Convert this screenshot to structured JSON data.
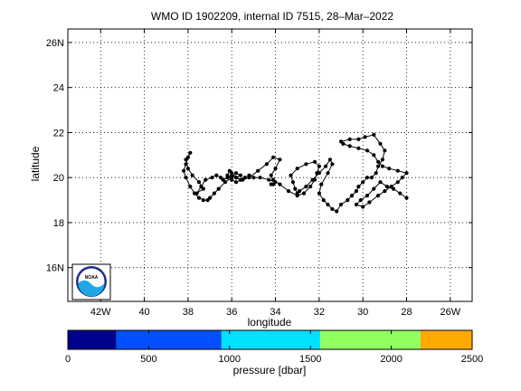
{
  "chart_data": {
    "type": "scatter",
    "title": "WMO ID 1902209, internal ID 7515, 28–Mar–2022",
    "xlabel": "longitude",
    "ylabel": "latitude",
    "xlim": [
      -43.5,
      -25.0
    ],
    "ylim": [
      14.5,
      26.6
    ],
    "grid": true,
    "x_ticks": [
      {
        "value": -42,
        "label": "42W"
      },
      {
        "value": -40,
        "label": "40"
      },
      {
        "value": -38,
        "label": "38"
      },
      {
        "value": -36,
        "label": "36"
      },
      {
        "value": -34,
        "label": "34"
      },
      {
        "value": -32,
        "label": "32"
      },
      {
        "value": -30,
        "label": "30"
      },
      {
        "value": -28,
        "label": "28"
      },
      {
        "value": -26,
        "label": "26W"
      }
    ],
    "y_ticks": [
      {
        "value": 16,
        "label": "16N"
      },
      {
        "value": 18,
        "label": "18"
      },
      {
        "value": 20,
        "label": "20"
      },
      {
        "value": 22,
        "label": "22"
      },
      {
        "value": 24,
        "label": "24"
      },
      {
        "value": 26,
        "label": "26N"
      }
    ],
    "series": [
      {
        "marker": "dot",
        "color": "#000000",
        "x": [
          -28.0,
          -28.3,
          -28.6,
          -28.9,
          -29.2,
          -29.5,
          -29.8,
          -30.1,
          -30.3,
          -30.0,
          -29.7,
          -29.3,
          -29.0,
          -28.7,
          -28.4,
          -28.2,
          -28.0,
          -28.4,
          -28.8,
          -29.1,
          -29.3,
          -29.5,
          -29.8,
          -30.2,
          -30.6,
          -30.9,
          -31.0,
          -30.6,
          -30.2,
          -29.9,
          -29.5,
          -29.2,
          -29.0,
          -29.1,
          -29.3,
          -29.4,
          -29.6,
          -29.8,
          -30.0,
          -30.2,
          -30.3,
          -30.5,
          -30.7,
          -31.0,
          -31.2,
          -31.4,
          -31.6,
          -31.8,
          -32.0,
          -31.9,
          -31.6,
          -31.4,
          -31.5,
          -31.7,
          -32.0,
          -32.3,
          -32.6,
          -32.9,
          -33.0,
          -33.1,
          -33.2,
          -33.3,
          -33.0,
          -32.6,
          -32.2,
          -32.0,
          -32.1,
          -32.2,
          -32.4,
          -32.7,
          -33.0,
          -33.4,
          -33.8,
          -34.1,
          -34.2,
          -34.0,
          -33.8,
          -34.1,
          -34.4,
          -34.8,
          -35.2,
          -35.5,
          -35.8,
          -36.0,
          -36.2,
          -36.1,
          -36.0,
          -35.8,
          -35.6,
          -35.8,
          -36.0,
          -36.3,
          -36.6,
          -36.8,
          -37.0,
          -37.1,
          -37.3,
          -37.5,
          -37.7,
          -37.9,
          -38.1,
          -38.2,
          -38.1,
          -38.0,
          -37.9,
          -38.1,
          -38.0,
          -37.8,
          -37.5,
          -37.3,
          -37.6,
          -37.4,
          -37.2,
          -36.9,
          -36.7,
          -36.5,
          -36.4,
          -36.2,
          -36.0,
          -35.8,
          -35.6,
          -35.4,
          -35.2,
          -35.0,
          -34.7,
          -34.3,
          -34.0,
          -34.2,
          -34.1
        ],
        "y": [
          19.1,
          19.3,
          19.5,
          19.6,
          19.8,
          19.5,
          19.2,
          19.0,
          18.8,
          18.7,
          18.9,
          19.2,
          19.4,
          19.6,
          19.8,
          20.0,
          20.2,
          20.3,
          20.4,
          20.5,
          20.7,
          21.0,
          21.2,
          21.3,
          21.4,
          21.5,
          21.6,
          21.7,
          21.7,
          21.8,
          21.9,
          21.5,
          21.2,
          20.8,
          20.5,
          20.2,
          20.0,
          20.0,
          19.8,
          19.6,
          19.4,
          19.2,
          19.0,
          18.8,
          18.5,
          18.6,
          18.8,
          19.0,
          19.3,
          19.7,
          20.2,
          20.6,
          20.8,
          20.5,
          20.2,
          19.9,
          19.6,
          19.4,
          19.3,
          19.5,
          19.8,
          20.1,
          20.4,
          20.6,
          20.7,
          20.5,
          20.2,
          19.9,
          19.6,
          19.3,
          19.2,
          19.4,
          19.7,
          19.9,
          20.1,
          20.4,
          20.8,
          20.9,
          20.6,
          20.3,
          20.0,
          19.9,
          19.8,
          19.9,
          20.1,
          20.3,
          20.2,
          20.0,
          20.1,
          20.2,
          20.0,
          19.8,
          19.5,
          19.3,
          19.1,
          19.0,
          19.0,
          19.1,
          19.3,
          19.6,
          20.0,
          20.3,
          20.6,
          20.9,
          21.1,
          20.8,
          20.4,
          20.1,
          19.8,
          19.5,
          19.3,
          19.6,
          19.9,
          20.0,
          20.1,
          20.0,
          19.9,
          20.0,
          20.1,
          20.0,
          19.9,
          20.0,
          20.1,
          20.0,
          20.0,
          19.9,
          19.8,
          19.7,
          19.7
        ]
      }
    ]
  },
  "logo": {
    "text": "NOAA",
    "colors": [
      "#1c2f86",
      "#1ea7e6",
      "#ffffff"
    ]
  },
  "colorbar": {
    "label": "pressure [dbar]",
    "ticks": [
      {
        "value": 0,
        "label": "0"
      },
      {
        "value": 500,
        "label": "500"
      },
      {
        "value": 1000,
        "label": "1000"
      },
      {
        "value": 1500,
        "label": "1500"
      },
      {
        "value": 2000,
        "label": "2000"
      },
      {
        "value": 2500,
        "label": "2500"
      }
    ],
    "range": [
      0,
      2500
    ],
    "segments": [
      {
        "from": 0,
        "to": 300,
        "color": "#00008f"
      },
      {
        "from": 300,
        "to": 950,
        "color": "#0050ff"
      },
      {
        "from": 950,
        "to": 1560,
        "color": "#00e0ff"
      },
      {
        "from": 1560,
        "to": 2180,
        "color": "#90ff60"
      },
      {
        "from": 2180,
        "to": 2500,
        "color": "#ffaa00"
      }
    ]
  }
}
